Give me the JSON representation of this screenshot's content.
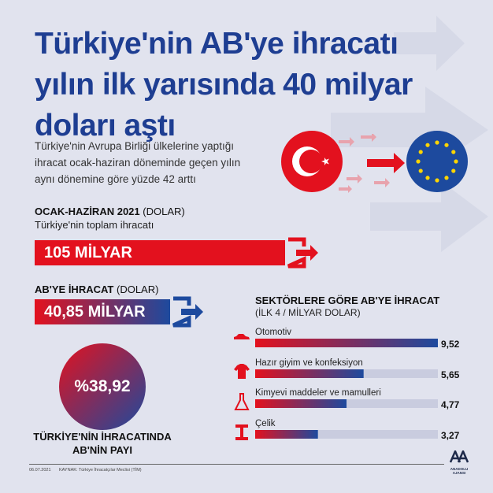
{
  "title_lines": [
    "Türkiye'nin AB'ye ihracatı",
    "yılın ilk yarısında 40 milyar",
    "doları aştı"
  ],
  "subtitle_lines": [
    "Türkiye'nin Avrupa Birliği ülkelerine yaptığı",
    "ihracat ocak-haziran döneminde geçen yılın",
    "aynı dönemine göre yüzde 42 arttı"
  ],
  "total": {
    "heading": "OCAK-HAZİRAN 2021",
    "unit": "(DOLAR)",
    "caption": "Türkiye'nin toplam ihracatı",
    "value": "105 MİLYAR"
  },
  "eu": {
    "heading": "AB'YE İHRACAT",
    "unit": "(DOLAR)",
    "value": "40,85 MİLYAR"
  },
  "share": {
    "value": "%38,92",
    "caption_lines": [
      "TÜRKİYE'NİN İHRACATINDA",
      "AB'NİN PAYI"
    ]
  },
  "colors": {
    "title": "#1e3e92",
    "red": "#e3111e",
    "blue": "#1d4a9e",
    "background": "#e1e3ee"
  },
  "chart_data": {
    "type": "bar",
    "orientation": "horizontal",
    "title": "SEKTÖRLERE GÖRE AB'YE İHRACAT",
    "subtitle": "(İLK 4 / MİLYAR DOLAR)",
    "categories": [
      "Otomotiv",
      "Hazır giyim ve konfeksiyon",
      "Kimyevi maddeler ve mamulleri",
      "Çelik"
    ],
    "values": [
      9.52,
      5.65,
      4.77,
      3.27
    ],
    "value_labels": [
      "9,52",
      "5,65",
      "4,77",
      "3,27"
    ],
    "icons": [
      "car-icon",
      "tshirt-icon",
      "flask-icon",
      "steel-beam-icon"
    ],
    "xlim": [
      0,
      9.52
    ]
  },
  "footer": {
    "date": "06.07.2021",
    "source": "KAYNAK: Türkiye İhracatçılar Meclisi (TİM)",
    "logo_text": "ANADOLU AJANSI"
  }
}
